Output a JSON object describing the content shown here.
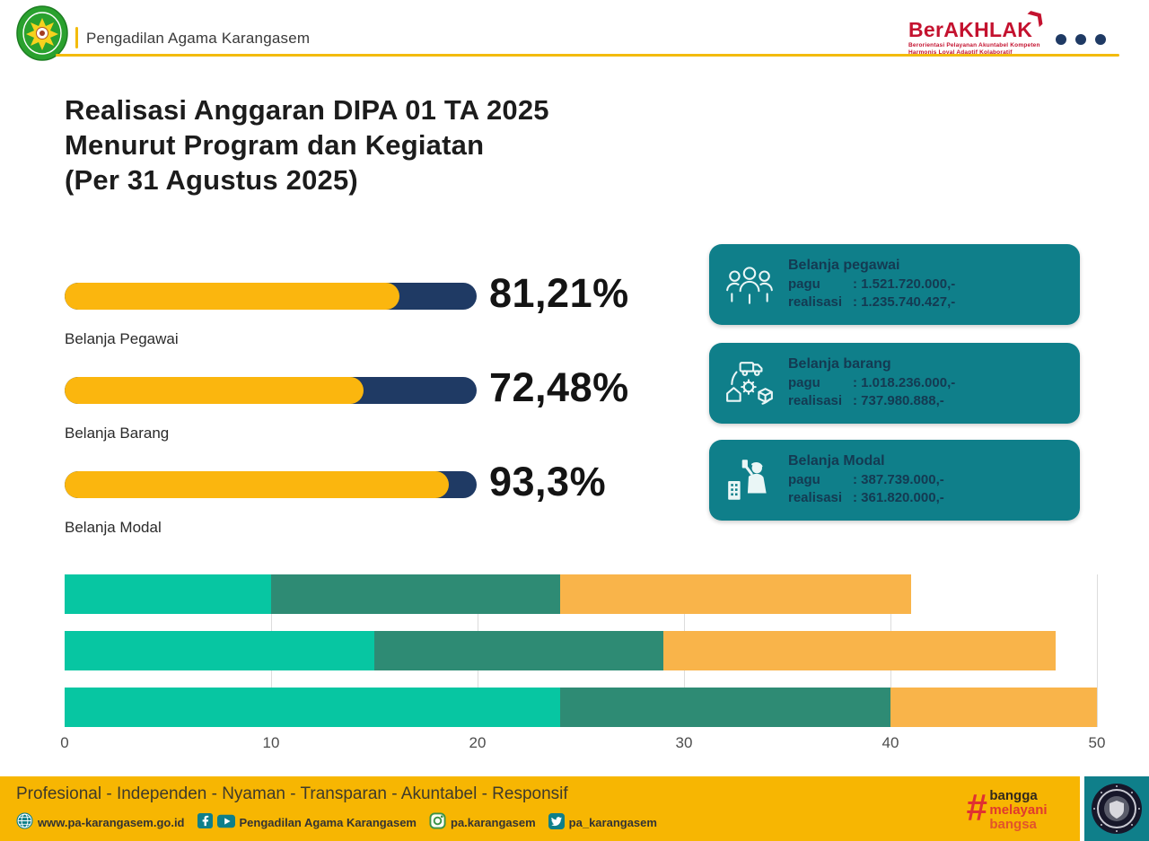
{
  "header": {
    "org_name": "Pengadilan Agama Karangasem",
    "berakhlak": {
      "title": "BerAKHLAK",
      "tagline_line1": "Berorientasi Pelayanan Akuntabel Kompeten",
      "tagline_line2": "Harmonis Loyal Adaptif Kolaboratif"
    }
  },
  "title_lines": [
    "Realisasi Anggaran DIPA 01 TA 2025",
    "Menurut Program dan Kegiatan",
    "(Per 31 Agustus 2025)"
  ],
  "cards": [
    {
      "icon": "people-group-icon",
      "title": "Belanja pegawai",
      "rows": [
        {
          "label": "pagu",
          "value": ": 1.521.720.000,-"
        },
        {
          "label": "realisasi",
          "value": ": 1.235.740.427,-"
        }
      ]
    },
    {
      "icon": "procurement-cycle-icon",
      "title": "Belanja barang",
      "rows": [
        {
          "label": "pagu",
          "value": ": 1.018.236.000,-"
        },
        {
          "label": "realisasi",
          "value": ": 737.980.888,-"
        }
      ]
    },
    {
      "icon": "construction-worker-icon",
      "title": "Belanja Modal",
      "rows": [
        {
          "label": "pagu",
          "value": ": 387.739.000,-"
        },
        {
          "label": "realisasi",
          "value": ": 361.820.000,-"
        }
      ]
    }
  ],
  "chart_data": [
    {
      "type": "bar",
      "orientation": "horizontal",
      "title": "",
      "categories": [
        "Belanja Pegawai",
        "Belanja Barang",
        "Belanja Modal"
      ],
      "values": [
        81.21,
        72.48,
        93.3
      ],
      "value_labels": [
        "81,21%",
        "72,48%",
        "93,3%"
      ],
      "xlim": [
        0,
        100
      ],
      "grid": false,
      "legend": "none",
      "fill_color": "#fbb60e",
      "track_color": "#1f3a64"
    },
    {
      "type": "bar",
      "stacked": true,
      "orientation": "horizontal",
      "title": "",
      "categories": [
        "",
        "",
        ""
      ],
      "series": [
        {
          "name": "series-1",
          "color": "#07c6a2",
          "values": [
            10,
            15,
            24
          ]
        },
        {
          "name": "series-2",
          "color": "#2e8b74",
          "values": [
            14,
            14,
            16
          ]
        },
        {
          "name": "series-3",
          "color": "#f9b44a",
          "values": [
            17,
            19,
            10
          ]
        }
      ],
      "x_ticks": [
        "0",
        "10",
        "20",
        "30",
        "40",
        "50"
      ],
      "xlim": [
        0,
        50
      ],
      "grid": true,
      "legend": "none"
    }
  ],
  "footer": {
    "tagline": "Profesional - Independen - Nyaman - Transparan - Akuntabel - Responsif",
    "links": [
      {
        "icon": "globe-icon",
        "text": "www.pa-karangasem.go.id"
      },
      {
        "icon": "facebook-icon youtube-icon",
        "text": "Pengadilan Agama Karangasem"
      },
      {
        "icon": "instagram-icon",
        "text": "pa.karangasem"
      },
      {
        "icon": "twitter-icon",
        "text": "pa_karangasem"
      }
    ],
    "bangga": {
      "hash": "#",
      "lines": [
        "bangga",
        "melayani",
        "bangsa"
      ]
    }
  },
  "colors": {
    "accent_yellow": "#f7b602",
    "navy": "#1f3a64",
    "card_teal": "#0f7f8a",
    "chart_green": "#07c6a2",
    "chart_dark_teal": "#2e8b74",
    "chart_orange": "#f9b44a",
    "berakhlak_red": "#c4122f"
  }
}
